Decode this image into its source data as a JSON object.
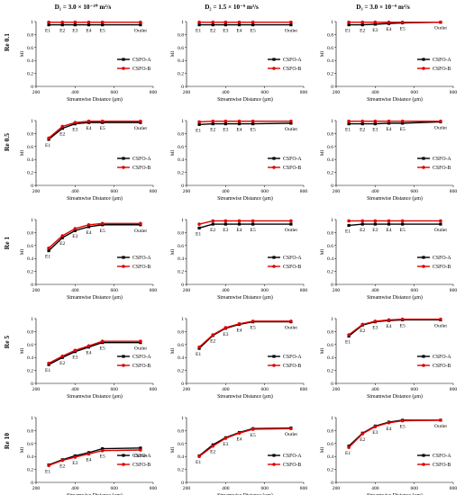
{
  "column_titles": [
    "D₁ = 3.0 × 10⁻¹⁰ m²/s",
    "D₂ = 1.5 × 10⁻⁹ m²/s",
    "D₃ = 3.0 × 10⁻⁹ m²/s"
  ],
  "row_labels": [
    "Re 0.1",
    "Re 0.5",
    "Re 1",
    "Re 5",
    "Re 10"
  ],
  "colors": {
    "csfo_a": "#000000",
    "csfo_b": "#e00000"
  },
  "chart_data": [
    {
      "type": "line",
      "row": 0,
      "col": 0,
      "title": "",
      "xlabel": "Streamwise Distance (μm)",
      "ylabel": "MI",
      "xlim": [
        200,
        800
      ],
      "ylim": [
        0,
        1
      ],
      "xticks": [
        200,
        400,
        600,
        800
      ],
      "yticks": [
        0,
        0.2,
        0.4,
        0.6,
        0.8,
        1
      ],
      "x": [
        265,
        335,
        400,
        470,
        540,
        735
      ],
      "point_labels": [
        "E1",
        "E2",
        "E3",
        "E4",
        "E5",
        "Outlet"
      ],
      "legend_position": "right",
      "series": [
        {
          "name": "CSFO-A",
          "values": [
            0.95,
            0.95,
            0.95,
            0.95,
            0.95,
            0.95
          ]
        },
        {
          "name": "CSFO-B",
          "values": [
            0.99,
            0.99,
            0.99,
            0.99,
            0.99,
            0.99
          ]
        }
      ]
    },
    {
      "type": "line",
      "row": 0,
      "col": 1,
      "title": "",
      "xlabel": "Streamwise Distance (μm)",
      "ylabel": "MI",
      "xlim": [
        200,
        800
      ],
      "ylim": [
        0,
        1
      ],
      "xticks": [
        200,
        400,
        600,
        800
      ],
      "yticks": [
        0,
        0.2,
        0.4,
        0.6,
        0.8,
        1
      ],
      "x": [
        265,
        335,
        400,
        470,
        540,
        735
      ],
      "point_labels": [
        "E1",
        "E2",
        "E3",
        "E4",
        "E5",
        "Outlet"
      ],
      "legend_position": "right",
      "series": [
        {
          "name": "CSFO-A",
          "values": [
            0.95,
            0.95,
            0.95,
            0.95,
            0.95,
            0.95
          ]
        },
        {
          "name": "CSFO-B",
          "values": [
            0.99,
            0.99,
            0.99,
            0.99,
            0.99,
            0.99
          ]
        }
      ]
    },
    {
      "type": "line",
      "row": 0,
      "col": 2,
      "title": "",
      "xlabel": "Streamwise Distance (μm)",
      "ylabel": "MI",
      "xlim": [
        200,
        800
      ],
      "ylim": [
        0,
        1
      ],
      "xticks": [
        200,
        400,
        600,
        800
      ],
      "yticks": [
        0,
        0.2,
        0.4,
        0.6,
        0.8,
        1
      ],
      "x": [
        265,
        335,
        400,
        470,
        540,
        735
      ],
      "point_labels": [
        "E1",
        "E2",
        "E3",
        "E4",
        "E5",
        "Outlet"
      ],
      "legend_position": "right",
      "series": [
        {
          "name": "CSFO-A",
          "values": [
            0.95,
            0.95,
            0.96,
            0.97,
            0.98,
            0.99
          ]
        },
        {
          "name": "CSFO-B",
          "values": [
            0.99,
            0.99,
            0.99,
            0.99,
            0.99,
            0.99
          ]
        }
      ]
    },
    {
      "type": "line",
      "row": 1,
      "col": 0,
      "title": "",
      "xlabel": "Streamwise Distance (μm)",
      "ylabel": "MI",
      "xlim": [
        200,
        800
      ],
      "ylim": [
        0,
        1
      ],
      "xticks": [
        200,
        400,
        600,
        800
      ],
      "yticks": [
        0,
        0.2,
        0.4,
        0.6,
        0.8,
        1
      ],
      "x": [
        265,
        335,
        400,
        470,
        540,
        735
      ],
      "point_labels": [
        "E1",
        "E2",
        "E3",
        "E4",
        "E5",
        "Outlet"
      ],
      "legend_position": "right",
      "series": [
        {
          "name": "CSFO-A",
          "values": [
            0.71,
            0.88,
            0.95,
            0.97,
            0.97,
            0.97
          ]
        },
        {
          "name": "CSFO-B",
          "values": [
            0.73,
            0.91,
            0.97,
            0.99,
            0.99,
            0.99
          ]
        }
      ]
    },
    {
      "type": "line",
      "row": 1,
      "col": 1,
      "title": "",
      "xlabel": "Streamwise Distance (μm)",
      "ylabel": "MI",
      "xlim": [
        200,
        800
      ],
      "ylim": [
        0,
        1
      ],
      "xticks": [
        200,
        400,
        600,
        800
      ],
      "yticks": [
        0,
        0.2,
        0.4,
        0.6,
        0.8,
        1
      ],
      "x": [
        265,
        335,
        400,
        470,
        540,
        735
      ],
      "point_labels": [
        "E1",
        "E2",
        "E3",
        "E4",
        "E5",
        "Outlet"
      ],
      "legend_position": "right",
      "series": [
        {
          "name": "CSFO-A",
          "values": [
            0.94,
            0.95,
            0.95,
            0.95,
            0.95,
            0.96
          ]
        },
        {
          "name": "CSFO-B",
          "values": [
            0.98,
            0.99,
            0.99,
            0.99,
            0.99,
            0.99
          ]
        }
      ]
    },
    {
      "type": "line",
      "row": 1,
      "col": 2,
      "title": "",
      "xlabel": "Streamwise Distance (μm)",
      "ylabel": "MI",
      "xlim": [
        200,
        800
      ],
      "ylim": [
        0,
        1
      ],
      "xticks": [
        200,
        400,
        600,
        800
      ],
      "yticks": [
        0,
        0.2,
        0.4,
        0.6,
        0.8,
        1
      ],
      "x": [
        265,
        335,
        400,
        470,
        540,
        735
      ],
      "point_labels": [
        "E1",
        "E2",
        "E3",
        "E4",
        "E5",
        "Outlet"
      ],
      "legend_position": "right",
      "series": [
        {
          "name": "CSFO-A",
          "values": [
            0.95,
            0.95,
            0.95,
            0.96,
            0.96,
            0.98
          ]
        },
        {
          "name": "CSFO-B",
          "values": [
            0.99,
            0.99,
            0.99,
            0.99,
            0.99,
            0.99
          ]
        }
      ]
    },
    {
      "type": "line",
      "row": 2,
      "col": 0,
      "title": "",
      "xlabel": "Streamwise Distance (μm)",
      "ylabel": "MI",
      "xlim": [
        200,
        800
      ],
      "ylim": [
        0,
        1
      ],
      "xticks": [
        200,
        400,
        600,
        800
      ],
      "yticks": [
        0,
        0.2,
        0.4,
        0.6,
        0.8,
        1
      ],
      "x": [
        265,
        335,
        400,
        470,
        540,
        735
      ],
      "point_labels": [
        "E1",
        "E2",
        "E3",
        "E4",
        "E5",
        "Outlet"
      ],
      "legend_position": "right",
      "series": [
        {
          "name": "CSFO-A",
          "values": [
            0.52,
            0.72,
            0.83,
            0.89,
            0.92,
            0.92
          ]
        },
        {
          "name": "CSFO-B",
          "values": [
            0.56,
            0.75,
            0.86,
            0.92,
            0.94,
            0.94
          ]
        }
      ]
    },
    {
      "type": "line",
      "row": 2,
      "col": 1,
      "title": "",
      "xlabel": "Streamwise Distance (μm)",
      "ylabel": "MI",
      "xlim": [
        200,
        800
      ],
      "ylim": [
        0,
        1
      ],
      "xticks": [
        200,
        400,
        600,
        800
      ],
      "yticks": [
        0,
        0.2,
        0.4,
        0.6,
        0.8,
        1
      ],
      "x": [
        265,
        335,
        400,
        470,
        540,
        735
      ],
      "point_labels": [
        "E1",
        "E2",
        "E3",
        "E4",
        "E5",
        "Outlet"
      ],
      "legend_position": "right",
      "series": [
        {
          "name": "CSFO-A",
          "values": [
            0.87,
            0.93,
            0.93,
            0.93,
            0.93,
            0.93
          ]
        },
        {
          "name": "CSFO-B",
          "values": [
            0.93,
            0.98,
            0.98,
            0.98,
            0.98,
            0.98
          ]
        }
      ]
    },
    {
      "type": "line",
      "row": 2,
      "col": 2,
      "title": "",
      "xlabel": "Streamwise Distance (μm)",
      "ylabel": "MI",
      "xlim": [
        200,
        800
      ],
      "ylim": [
        0,
        1
      ],
      "xticks": [
        200,
        400,
        600,
        800
      ],
      "yticks": [
        0,
        0.2,
        0.4,
        0.6,
        0.8,
        1
      ],
      "x": [
        265,
        335,
        400,
        470,
        540,
        735
      ],
      "point_labels": [
        "E1",
        "E2",
        "E3",
        "E4",
        "E5",
        "Outlet"
      ],
      "legend_position": "right",
      "series": [
        {
          "name": "CSFO-A",
          "values": [
            0.91,
            0.93,
            0.93,
            0.93,
            0.93,
            0.93
          ]
        },
        {
          "name": "CSFO-B",
          "values": [
            0.98,
            0.98,
            0.98,
            0.98,
            0.98,
            0.98
          ]
        }
      ]
    },
    {
      "type": "line",
      "row": 3,
      "col": 0,
      "title": "",
      "xlabel": "Streamwise Distance (μm)",
      "ylabel": "MI",
      "xlim": [
        200,
        800
      ],
      "ylim": [
        0,
        1
      ],
      "xticks": [
        200,
        400,
        600,
        800
      ],
      "yticks": [
        0,
        0.2,
        0.4,
        0.6,
        0.8,
        1
      ],
      "x": [
        265,
        335,
        400,
        470,
        540,
        735
      ],
      "point_labels": [
        "E1",
        "E2",
        "E3",
        "E4",
        "E5",
        "Outlet"
      ],
      "legend_position": "right",
      "series": [
        {
          "name": "CSFO-A",
          "values": [
            0.29,
            0.4,
            0.49,
            0.56,
            0.63,
            0.63
          ]
        },
        {
          "name": "CSFO-B",
          "values": [
            0.31,
            0.42,
            0.51,
            0.58,
            0.65,
            0.65
          ]
        }
      ]
    },
    {
      "type": "line",
      "row": 3,
      "col": 1,
      "title": "",
      "xlabel": "Streamwise Distance (μm)",
      "ylabel": "MI",
      "xlim": [
        200,
        800
      ],
      "ylim": [
        0,
        1
      ],
      "xticks": [
        200,
        400,
        600,
        800
      ],
      "yticks": [
        0,
        0.2,
        0.4,
        0.6,
        0.8,
        1
      ],
      "x": [
        265,
        335,
        400,
        470,
        540,
        735
      ],
      "point_labels": [
        "E1",
        "E2",
        "E3",
        "E4",
        "E5",
        "Outlet"
      ],
      "legend_position": "right",
      "series": [
        {
          "name": "CSFO-A",
          "values": [
            0.54,
            0.74,
            0.85,
            0.91,
            0.95,
            0.95
          ]
        },
        {
          "name": "CSFO-B",
          "values": [
            0.56,
            0.75,
            0.86,
            0.92,
            0.96,
            0.96
          ]
        }
      ]
    },
    {
      "type": "line",
      "row": 3,
      "col": 2,
      "title": "",
      "xlabel": "Streamwise Distance (μm)",
      "ylabel": "MI",
      "xlim": [
        200,
        800
      ],
      "ylim": [
        0,
        1
      ],
      "xticks": [
        200,
        400,
        600,
        800
      ],
      "yticks": [
        0,
        0.2,
        0.4,
        0.6,
        0.8,
        1
      ],
      "x": [
        265,
        335,
        400,
        470,
        540,
        735
      ],
      "point_labels": [
        "E1",
        "E2",
        "E3",
        "E4",
        "E5",
        "Outlet"
      ],
      "legend_position": "right",
      "series": [
        {
          "name": "CSFO-A",
          "values": [
            0.73,
            0.9,
            0.95,
            0.97,
            0.98,
            0.98
          ]
        },
        {
          "name": "CSFO-B",
          "values": [
            0.75,
            0.91,
            0.96,
            0.98,
            0.99,
            0.99
          ]
        }
      ]
    },
    {
      "type": "line",
      "row": 4,
      "col": 0,
      "title": "",
      "xlabel": "Streamwise Distance (μm)",
      "ylabel": "MI",
      "xlim": [
        200,
        800
      ],
      "ylim": [
        0,
        1
      ],
      "xticks": [
        200,
        400,
        600,
        800
      ],
      "yticks": [
        0,
        0.2,
        0.4,
        0.6,
        0.8,
        1
      ],
      "x": [
        265,
        335,
        400,
        470,
        540,
        735
      ],
      "point_labels": [
        "E1",
        "E2",
        "E3",
        "E4",
        "E5",
        "Outlet"
      ],
      "legend_position": "right",
      "series": [
        {
          "name": "CSFO-A",
          "values": [
            0.27,
            0.35,
            0.41,
            0.46,
            0.52,
            0.53
          ]
        },
        {
          "name": "CSFO-B",
          "values": [
            0.26,
            0.34,
            0.39,
            0.44,
            0.49,
            0.5
          ]
        }
      ]
    },
    {
      "type": "line",
      "row": 4,
      "col": 1,
      "title": "",
      "xlabel": "Streamwise Distance (μm)",
      "ylabel": "MI",
      "xlim": [
        200,
        800
      ],
      "ylim": [
        0,
        1
      ],
      "xticks": [
        200,
        400,
        600,
        800
      ],
      "yticks": [
        0,
        0.2,
        0.4,
        0.6,
        0.8,
        1
      ],
      "x": [
        265,
        335,
        400,
        470,
        540,
        735
      ],
      "point_labels": [
        "E1",
        "E2",
        "E3",
        "E4",
        "E5",
        "Outlet"
      ],
      "legend_position": "right",
      "series": [
        {
          "name": "CSFO-A",
          "values": [
            0.41,
            0.58,
            0.69,
            0.77,
            0.83,
            0.84
          ]
        },
        {
          "name": "CSFO-B",
          "values": [
            0.4,
            0.56,
            0.68,
            0.76,
            0.82,
            0.83
          ]
        }
      ]
    },
    {
      "type": "line",
      "row": 4,
      "col": 2,
      "title": "",
      "xlabel": "Streamwise Distance (μm)",
      "ylabel": "MI",
      "xlim": [
        200,
        800
      ],
      "ylim": [
        0,
        1
      ],
      "xticks": [
        200,
        400,
        600,
        800
      ],
      "yticks": [
        0,
        0.2,
        0.4,
        0.6,
        0.8,
        1
      ],
      "x": [
        265,
        335,
        400,
        470,
        540,
        735
      ],
      "point_labels": [
        "E1",
        "E2",
        "E3",
        "E4",
        "E5",
        "Outlet"
      ],
      "legend_position": "right",
      "series": [
        {
          "name": "CSFO-A",
          "values": [
            0.56,
            0.76,
            0.87,
            0.93,
            0.96,
            0.96
          ]
        },
        {
          "name": "CSFO-B",
          "values": [
            0.54,
            0.75,
            0.86,
            0.92,
            0.95,
            0.96
          ]
        }
      ]
    }
  ]
}
